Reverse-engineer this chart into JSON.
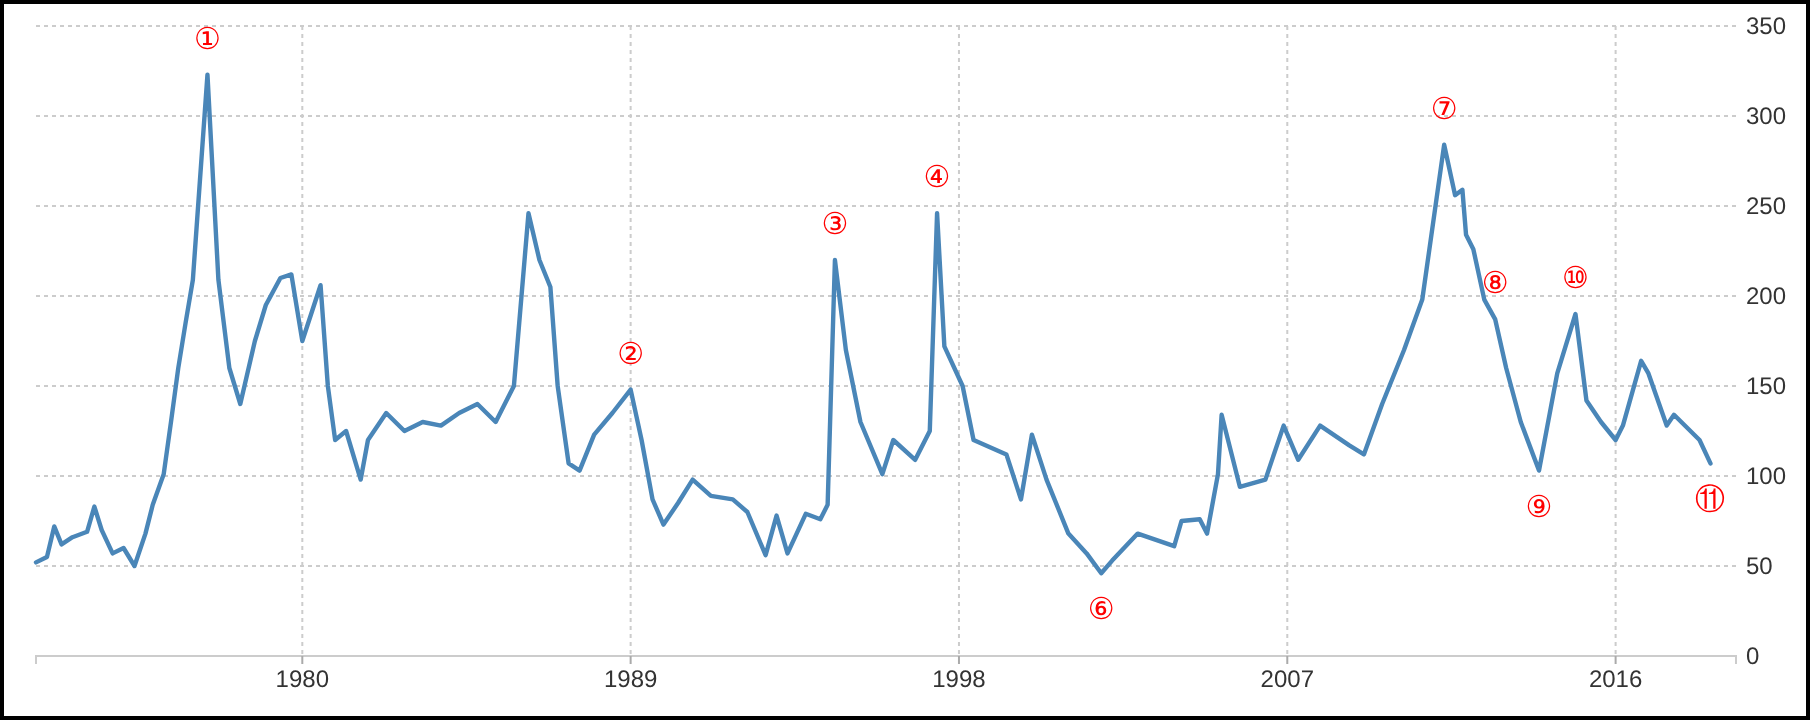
{
  "chart_data": {
    "type": "line",
    "x": [
      1972.7,
      1973.0,
      1973.2,
      1973.4,
      1973.7,
      1974.1,
      1974.3,
      1974.5,
      1974.8,
      1975.1,
      1975.4,
      1975.7,
      1975.9,
      1976.2,
      1976.4,
      1976.6,
      1976.8,
      1977.0,
      1977.4,
      1977.7,
      1978.0,
      1978.3,
      1978.7,
      1979.0,
      1979.4,
      1979.7,
      1980.0,
      1980.5,
      1980.7,
      1980.9,
      1981.2,
      1981.6,
      1981.8,
      1982.3,
      1982.8,
      1983.3,
      1983.8,
      1984.3,
      1984.8,
      1985.3,
      1985.8,
      1986.2,
      1986.5,
      1986.8,
      1987.0,
      1987.3,
      1987.6,
      1988.0,
      1988.5,
      1989.0,
      1989.3,
      1989.6,
      1989.9,
      1990.3,
      1990.7,
      1991.2,
      1991.8,
      1992.2,
      1992.7,
      1993.0,
      1993.3,
      1993.8,
      1994.2,
      1994.4,
      1994.6,
      1994.9,
      1995.3,
      1995.9,
      1996.2,
      1996.8,
      1997.2,
      1997.4,
      1997.6,
      1998.1,
      1998.4,
      1999.3,
      1999.7,
      2000.0,
      2000.4,
      2001.0,
      2001.5,
      2001.9,
      2002.2,
      2002.9,
      2003.9,
      2004.1,
      2004.6,
      2004.8,
      2005.1,
      2005.2,
      2005.7,
      2006.4,
      2006.9,
      2007.3,
      2007.9,
      2008.7,
      2009.1,
      2009.6,
      2010.2,
      2010.7,
      2011.3,
      2011.6,
      2011.8,
      2011.9,
      2012.1,
      2012.4,
      2012.7,
      2013.0,
      2013.4,
      2013.9,
      2014.4,
      2014.9,
      2015.2,
      2015.6,
      2016.0,
      2016.2,
      2016.7,
      2016.9,
      2017.4,
      2017.6,
      2018.3,
      2018.6
    ],
    "series": [
      {
        "color": "#4a86b8",
        "values": [
          52,
          55,
          72,
          62,
          66,
          69,
          83,
          70,
          57,
          60,
          50,
          68,
          84,
          101,
          130,
          160,
          185,
          209,
          323,
          209,
          160,
          140,
          175,
          195,
          210,
          212,
          175,
          206,
          150,
          120,
          125,
          98,
          120,
          135,
          125,
          130,
          128,
          135,
          140,
          130,
          150,
          246,
          220,
          205,
          150,
          107,
          103,
          123,
          135,
          148,
          120,
          87,
          73,
          85,
          98,
          89,
          87,
          80,
          56,
          78,
          57,
          79,
          76,
          84,
          220,
          170,
          130,
          101,
          120,
          109,
          125,
          246,
          172,
          150,
          120,
          112,
          87,
          123,
          98,
          68,
          57,
          46,
          53,
          68,
          61,
          75,
          76,
          68,
          101,
          134,
          94,
          98,
          128,
          109,
          128,
          117,
          112,
          140,
          170,
          198,
          284,
          256,
          259,
          234,
          226,
          198,
          187,
          160,
          130,
          103,
          157,
          190,
          142,
          130,
          120,
          128,
          164,
          157,
          128,
          134,
          120,
          107
        ]
      }
    ],
    "xlim": [
      1972.7,
      2019.3
    ],
    "xticks": [
      1980,
      1989,
      1998,
      2007,
      2016
    ],
    "ylim": [
      0,
      350
    ],
    "yticks": [
      0,
      50,
      100,
      150,
      200,
      250,
      300,
      350
    ],
    "grid": true,
    "marker": "none",
    "line_style": "solid",
    "annotations": [
      {
        "text": "①",
        "x": 1977.4,
        "y": 323
      },
      {
        "text": "②",
        "x": 1989.0,
        "y": 148
      },
      {
        "text": "③",
        "x": 1994.6,
        "y": 220
      },
      {
        "text": "④",
        "x": 1997.4,
        "y": 246
      },
      {
        "text": "⑥",
        "x": 2001.9,
        "y": 46
      },
      {
        "text": "⑦",
        "x": 2011.3,
        "y": 284
      },
      {
        "text": "⑧",
        "x": 2012.7,
        "y": 187
      },
      {
        "text": "⑨",
        "x": 2013.9,
        "y": 103
      },
      {
        "text": "⑩",
        "x": 2014.9,
        "y": 190
      },
      {
        "text": "⑪",
        "x": 2018.6,
        "y": 107
      }
    ]
  }
}
